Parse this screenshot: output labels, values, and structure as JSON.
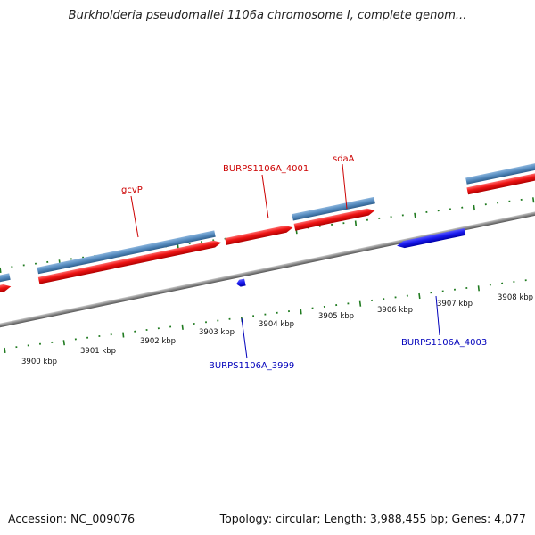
{
  "title": "Burkholderia pseudomallei 1106a chromosome I, complete genom...",
  "footer": {
    "accession": "Accession: NC_009076",
    "summary": "Topology: circular; Length: 3,988,455 bp; Genes: 4,077"
  },
  "colors": {
    "forward_cds": "#ee1111",
    "forward_gene": "#4f86b8",
    "reverse_gene": "#1a1aee",
    "backbone": "#8a8a8a",
    "ticks": "#1f7a1f",
    "forward_label": "#cc0000",
    "reverse_label": "#0000bb"
  },
  "scale": {
    "labels": [
      "3900 kbp",
      "3901 kbp",
      "3902 kbp",
      "3903 kbp",
      "3904 kbp",
      "3905 kbp",
      "3906 kbp",
      "3907 kbp",
      "3908 kbp"
    ]
  },
  "genes": {
    "forward": [
      {
        "name": "gcvP"
      },
      {
        "name": "BURPS1106A_4001"
      },
      {
        "name": "sdaA"
      }
    ],
    "reverse": [
      {
        "name": "BURPS1106A_3999"
      },
      {
        "name": "BURPS1106A_4003"
      }
    ]
  }
}
